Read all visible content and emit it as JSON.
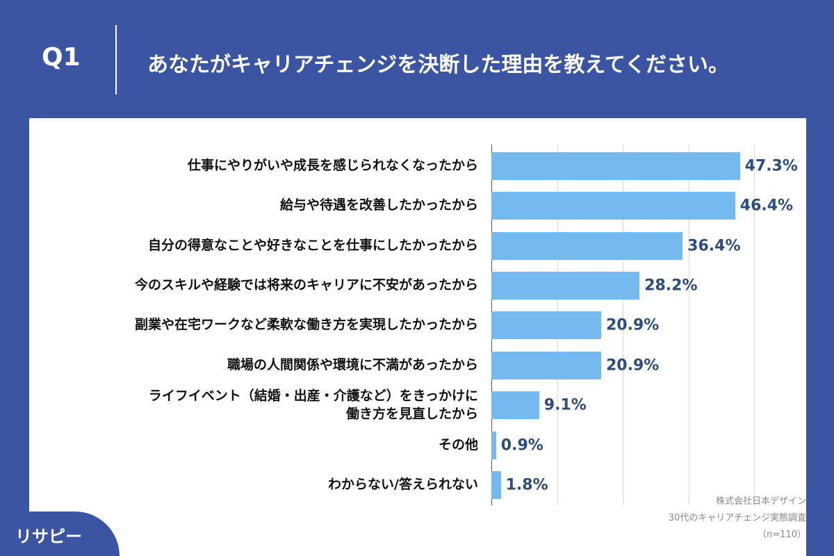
{
  "header": {
    "question": "Q1",
    "title": "あなたがキャリアチェンジを決断した理由を教えてください。"
  },
  "chart_data": {
    "type": "bar",
    "categories": [
      "仕事にやりがいや成長を感じられなくなったから",
      "給与や待遇を改善したかったから",
      "自分の得意なことや好きなことを仕事にしたかったから",
      "今のスキルや経験では将来のキャリアに不安があったから",
      "副業や在宅ワークなど柔軟な働き方を実現したかったから",
      "職場の人間関係や環境に不満があったから",
      "ライフイベント（結婚・出産・介護など）をきっかけに\n働き方を見直したから",
      "その他",
      "わからない/答えられない"
    ],
    "values": [
      47.3,
      46.4,
      36.4,
      28.2,
      20.9,
      20.9,
      9.1,
      0.9,
      1.8
    ],
    "value_labels": [
      "47.3%",
      "46.4%",
      "36.4%",
      "28.2%",
      "20.9%",
      "20.9%",
      "9.1%",
      "0.9%",
      "1.8%"
    ],
    "color": "#74b9f0",
    "xlim": [
      0,
      50
    ],
    "xticks": [
      0,
      12.5,
      25,
      37.5,
      50
    ],
    "grid": true
  },
  "source": [
    "株式会社日本デザイン",
    "30代のキャリアチェンジ実態調査",
    "（n=110）"
  ],
  "logo": "リサピー"
}
